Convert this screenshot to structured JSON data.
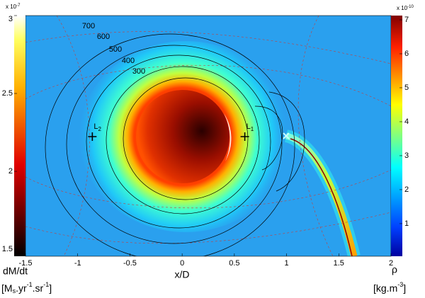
{
  "chart_data": {
    "type": "heatmap",
    "x_label": "x/D",
    "xlim": [
      -1.5,
      2
    ],
    "xticks": [
      -1.5,
      -1,
      -0.5,
      0,
      0.5,
      1,
      1.5,
      2
    ],
    "left_colorbar": {
      "label": "dM/dt",
      "unit": [
        "[M",
        "s",
        ".yr",
        "-1",
        ".sr",
        "-1",
        "]"
      ],
      "exponent_base": "x 10",
      "exponent_power": "-7",
      "lim": [
        1.455,
        3
      ],
      "ticks": [
        1.5,
        2,
        2.5,
        3
      ]
    },
    "right_colorbar": {
      "label": "ρ",
      "unit": [
        "[kg.m",
        "-3",
        "]"
      ],
      "exponent_base": "x 10",
      "exponent_power": "-10",
      "lim": [
        0.04,
        7.125
      ],
      "ticks": [
        1,
        2,
        3,
        4,
        5,
        6,
        7
      ]
    },
    "contour_labels": [
      700,
      600,
      500,
      400,
      300
    ],
    "points": [
      {
        "label": "L",
        "sub": "2",
        "x": -0.86
      },
      {
        "label": "L",
        "sub": "1",
        "x": 0.6
      }
    ]
  }
}
